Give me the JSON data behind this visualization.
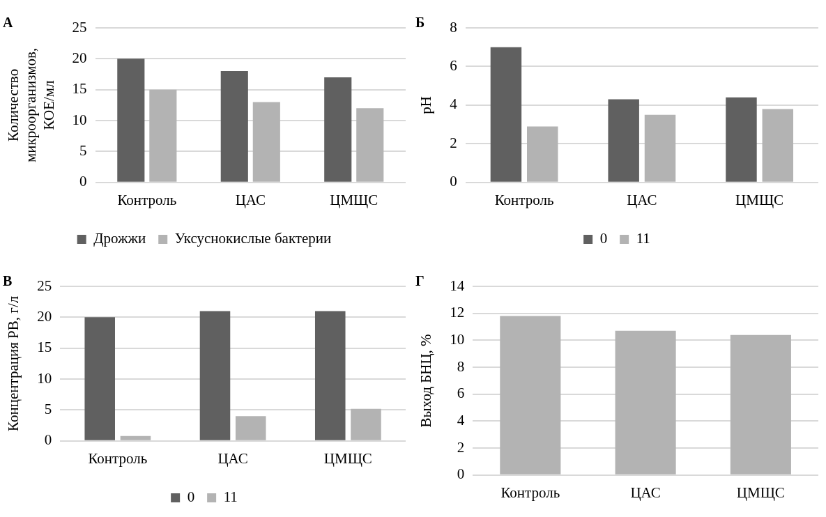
{
  "chart_data": [
    {
      "type": "bar",
      "title": "А",
      "ylabel": "Количество микроорганизмов, КОЕ/мл",
      "categories": [
        "Контроль",
        "ЦАС",
        "ЦМЩС"
      ],
      "series": [
        {
          "name": "Дрожжи",
          "color": "#606060",
          "values": [
            20,
            18,
            17
          ]
        },
        {
          "name": "Уксуснокислые бактерии",
          "color": "#b3b3b3",
          "values": [
            15,
            13,
            12
          ]
        }
      ],
      "ylim": [
        0,
        25
      ],
      "yticks": [
        0,
        5,
        10,
        15,
        20,
        25
      ],
      "grid": "y",
      "legend": "bottom"
    },
    {
      "type": "bar",
      "title": "Б",
      "ylabel": "pH",
      "categories": [
        "Контроль",
        "ЦАС",
        "ЦМЩС"
      ],
      "series": [
        {
          "name": "0",
          "color": "#606060",
          "values": [
            7,
            4.3,
            4.4
          ]
        },
        {
          "name": "11",
          "color": "#b3b3b3",
          "values": [
            2.9,
            3.5,
            3.8
          ]
        }
      ],
      "ylim": [
        0,
        8
      ],
      "yticks": [
        0,
        2,
        4,
        6,
        8
      ],
      "grid": "y",
      "legend": "bottom"
    },
    {
      "type": "bar",
      "title": "В",
      "ylabel": "Концентрация РВ, г/л",
      "categories": [
        "Контроль",
        "ЦАС",
        "ЦМЩС"
      ],
      "series": [
        {
          "name": "0",
          "color": "#606060",
          "values": [
            20,
            21,
            21
          ]
        },
        {
          "name": "11",
          "color": "#b3b3b3",
          "values": [
            0.8,
            4,
            5.2
          ]
        }
      ],
      "ylim": [
        0,
        25
      ],
      "yticks": [
        0,
        5,
        10,
        15,
        20,
        25
      ],
      "grid": "y",
      "legend": "bottom"
    },
    {
      "type": "bar",
      "title": "Г",
      "ylabel": "Выход БНЦ, %",
      "categories": [
        "Контроль",
        "ЦАС",
        "ЦМЩС"
      ],
      "series": [
        {
          "color": "#b3b3b3",
          "values": [
            11.8,
            10.7,
            10.4
          ]
        }
      ],
      "ylim": [
        0,
        14
      ],
      "yticks": [
        0,
        2,
        4,
        6,
        8,
        10,
        12,
        14
      ],
      "grid": "y"
    }
  ]
}
